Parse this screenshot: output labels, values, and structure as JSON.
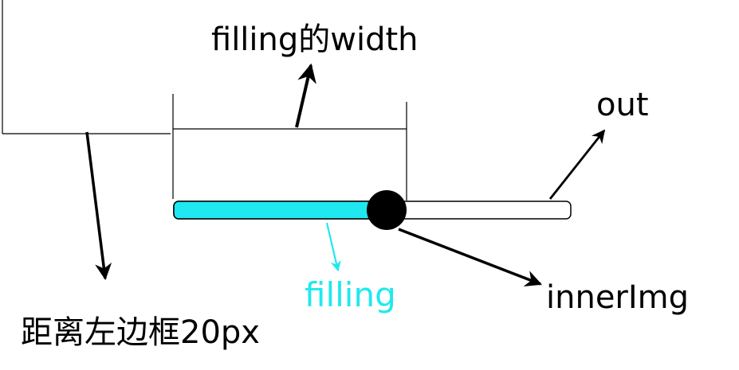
{
  "labels": {
    "filling_width": "filling的width",
    "out": "out",
    "filling": "filling",
    "inner_img": "innerImg",
    "left_distance": "距离左边框20px"
  },
  "colors": {
    "filling": "#20e8f0",
    "filling_label": "#20e8f0",
    "outline": "#000000",
    "track": "#ffffff",
    "knob": "#000000"
  },
  "slider": {
    "fill_fraction": 0.5
  }
}
